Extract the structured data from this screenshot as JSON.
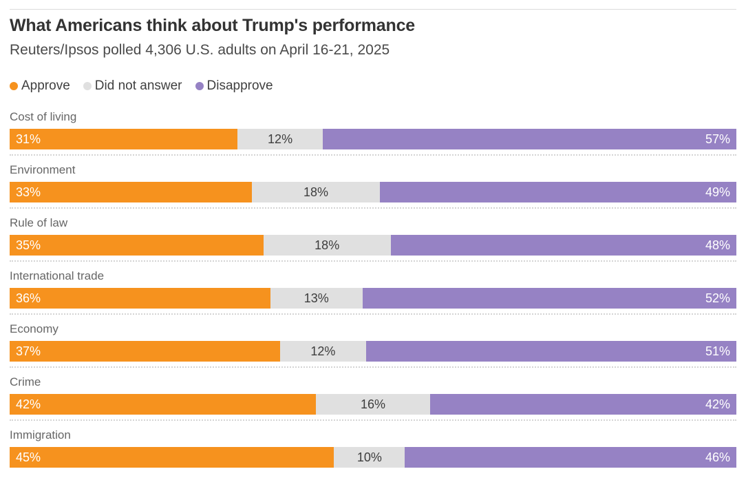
{
  "header": {
    "title": "What Americans think about Trump's performance",
    "subtitle": "Reuters/Ipsos polled 4,306 U.S. adults on April 16-21, 2025"
  },
  "colors": {
    "approve": "#f6921e",
    "did_not_answer": "#e0e0e0",
    "disapprove": "#9682c4",
    "label_on_color": "#ffffff",
    "label_on_gray": "#3d3d3d"
  },
  "chart_data": {
    "type": "bar",
    "orientation": "horizontal-stacked",
    "title": "What Americans think about Trump's performance",
    "subtitle": "Reuters/Ipsos polled 4,306 U.S. adults on April 16-21, 2025",
    "value_suffix": "%",
    "xlim": [
      0,
      100
    ],
    "grid": false,
    "legend_position": "top",
    "categories": [
      "Cost of living",
      "Environment",
      "Rule of law",
      "International trade",
      "Economy",
      "Crime",
      "Immigration"
    ],
    "series": [
      {
        "name": "Approve",
        "color": "#f6921e",
        "text_color": "#ffffff",
        "values": [
          31,
          33,
          35,
          36,
          37,
          42,
          45
        ]
      },
      {
        "name": "Did not answer",
        "color": "#e0e0e0",
        "text_color": "#3d3d3d",
        "values": [
          12,
          18,
          18,
          13,
          12,
          16,
          10
        ]
      },
      {
        "name": "Disapprove",
        "color": "#9682c4",
        "text_color": "#ffffff",
        "values": [
          57,
          49,
          48,
          52,
          51,
          42,
          46
        ]
      }
    ]
  }
}
